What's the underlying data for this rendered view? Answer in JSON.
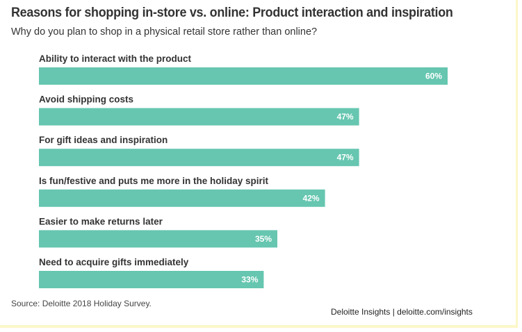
{
  "title": "Reasons for shopping in-store vs. online: Product interaction and inspiration",
  "subtitle": "Why do you plan to shop in a physical retail store rather than online?",
  "source": "Source: Deloitte 2018 Holiday Survey.",
  "brand": "Deloitte Insights | deloitte.com/insights",
  "colors": {
    "bar": "#66c6b0",
    "text": "#333333",
    "value_text": "#ffffff"
  },
  "chart_data": {
    "type": "bar",
    "orientation": "horizontal",
    "title": "Reasons for shopping in-store vs. online: Product interaction and inspiration",
    "categories": [
      "Ability to interact with the product",
      "Avoid shipping costs",
      "For gift ideas and inspiration",
      "Is fun/festive and puts me more in the holiday spirit",
      "Easier to make returns later",
      "Need to acquire gifts immediately"
    ],
    "values": [
      60,
      47,
      47,
      42,
      35,
      33
    ],
    "value_labels": [
      "60%",
      "47%",
      "47%",
      "42%",
      "35%",
      "33%"
    ],
    "xlim": [
      0,
      60
    ],
    "grid": false,
    "legend": "none"
  }
}
